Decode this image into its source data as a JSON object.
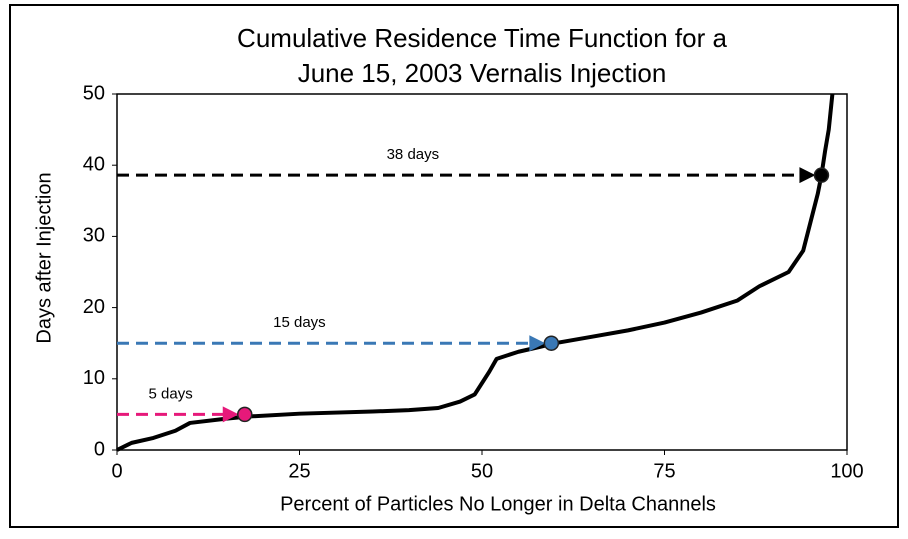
{
  "chart_data": {
    "type": "line",
    "title": [
      "Cumulative Residence Time Function for a",
      "June 15, 2003 Vernalis Injection"
    ],
    "x_label": "Percent of Particles No Longer in Delta Channels",
    "y_label": "Days after Injection",
    "xlim": [
      0,
      100
    ],
    "ylim": [
      0,
      50
    ],
    "xticks": [
      0,
      25,
      50,
      75,
      100
    ],
    "yticks": [
      0,
      10,
      20,
      30,
      40,
      50
    ],
    "grid": false,
    "series": [
      {
        "color": "#000000",
        "x": [
          0,
          2,
          5,
          8,
          10,
          15,
          18,
          25,
          35,
          40,
          44,
          47,
          49,
          51,
          52,
          55,
          58,
          60,
          65,
          70,
          75,
          80,
          85,
          88,
          92,
          94,
          95,
          96,
          96.5,
          97,
          97.5,
          98
        ],
        "y": [
          0,
          1,
          1.7,
          2.7,
          3.8,
          4.4,
          4.7,
          5.1,
          5.4,
          5.6,
          5.9,
          6.8,
          7.8,
          11,
          12.8,
          13.8,
          14.5,
          15,
          15.9,
          16.8,
          17.9,
          19.3,
          21,
          23,
          25,
          28,
          32,
          36,
          38.6,
          42,
          45,
          50
        ]
      }
    ],
    "annotations": [
      {
        "text": "5 days",
        "x": 17.5,
        "y": 5,
        "color": "#e6197a"
      },
      {
        "text": "15 days",
        "x": 59.5,
        "y": 15,
        "color": "#3a78b5"
      },
      {
        "text": "38 days",
        "x": 96.5,
        "y": 38.6,
        "color": "#000000"
      }
    ]
  }
}
